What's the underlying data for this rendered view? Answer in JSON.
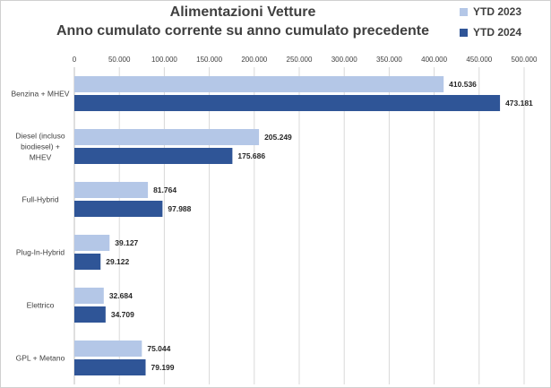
{
  "chart_data": {
    "type": "bar",
    "orientation": "horizontal",
    "title": "Alimentazioni Vetture",
    "subtitle": "Anno cumulato corrente su anno cumulato precedente",
    "categories": [
      "Benzina + MHEV",
      "Diesel (incluso biodiesel) + MHEV",
      "Full-Hybrid",
      "Plug-In-Hybrid",
      "Elettrico",
      "GPL + Metano"
    ],
    "category_lines": [
      [
        "Benzina + MHEV"
      ],
      [
        "Diesel (incluso",
        "biodiesel) +",
        "MHEV"
      ],
      [
        "Full-Hybrid"
      ],
      [
        "Plug-In-Hybrid"
      ],
      [
        "Elettrico"
      ],
      [
        "GPL + Metano"
      ]
    ],
    "series": [
      {
        "name": "YTD 2023",
        "color": "#b4c7e7",
        "values": [
          410536,
          205249,
          81764,
          39127,
          32684,
          75044
        ],
        "labels": [
          "410.536",
          "205.249",
          "81.764",
          "39.127",
          "32.684",
          "75.044"
        ]
      },
      {
        "name": "YTD 2024",
        "color": "#2f5597",
        "values": [
          473181,
          175686,
          97988,
          29122,
          34709,
          79199
        ],
        "labels": [
          "473.181",
          "175.686",
          "97.988",
          "29.122",
          "34.709",
          "79.199"
        ]
      }
    ],
    "xlim": [
      0,
      500000
    ],
    "ticks": [
      0,
      50000,
      100000,
      150000,
      200000,
      250000,
      300000,
      350000,
      400000,
      450000,
      500000
    ],
    "tick_labels": [
      "0",
      "50.000",
      "100.000",
      "150.000",
      "200.000",
      "250.000",
      "300.000",
      "350.000",
      "400.000",
      "450.000",
      "500.000"
    ],
    "axis_position": "top",
    "grid": true,
    "legend_position": "top-right"
  }
}
